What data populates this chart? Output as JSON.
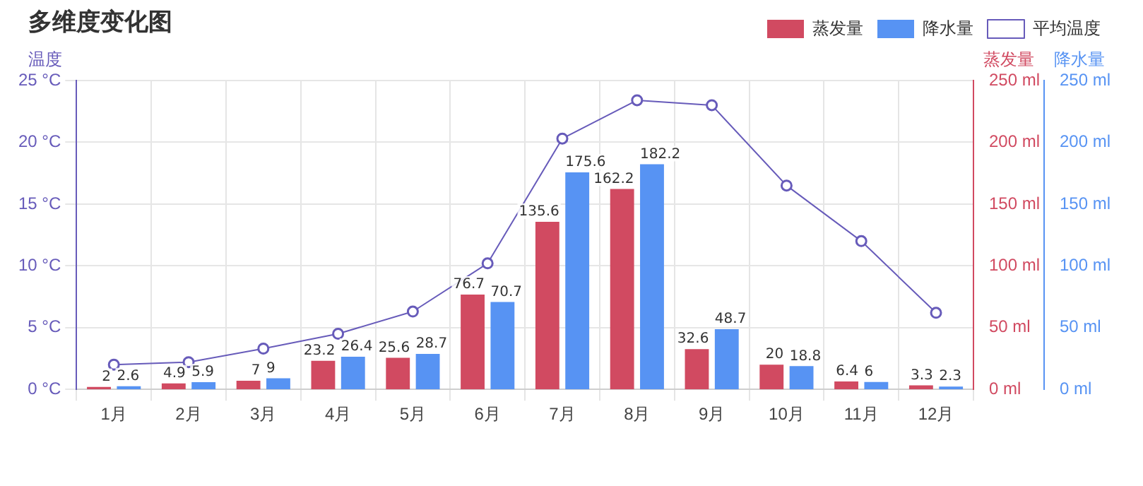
{
  "chart_data": {
    "type": "bar",
    "title": "多维度变化图",
    "categories": [
      "1月",
      "2月",
      "3月",
      "4月",
      "5月",
      "6月",
      "7月",
      "8月",
      "9月",
      "10月",
      "11月",
      "12月"
    ],
    "ylabel": "温度",
    "y2label": "蒸发量",
    "y3label": "降水量",
    "series": [
      {
        "name": "蒸发量",
        "axis": "y2",
        "color": "#d14a61",
        "values": [
          2,
          4.9,
          7,
          23.2,
          25.6,
          76.7,
          135.6,
          162.2,
          32.6,
          20,
          6.4,
          3.3
        ],
        "value_labels": [
          "2",
          "4.9",
          "7",
          "23.2",
          "25.6",
          "76.7",
          "135.6",
          "162.2",
          "32.6",
          "20",
          "6.4",
          "3.3"
        ]
      },
      {
        "name": "降水量",
        "axis": "y3",
        "color": "#5793f3",
        "values": [
          2.6,
          5.9,
          9,
          26.4,
          28.7,
          70.7,
          175.6,
          182.2,
          48.7,
          18.8,
          6,
          2.3
        ],
        "value_labels": [
          "2.6",
          "5.9",
          "9",
          "26.4",
          "28.7",
          "70.7",
          "175.6",
          "182.2",
          "48.7",
          "18.8",
          "6",
          "2.3"
        ]
      },
      {
        "name": "平均温度",
        "type": "line",
        "axis": "y",
        "color": "#675bba",
        "values": [
          2,
          2.2,
          3.3,
          4.5,
          6.3,
          10.2,
          20.3,
          23.4,
          23,
          16.5,
          12,
          6.2
        ]
      }
    ],
    "ylim": [
      0,
      25
    ],
    "yticks": [
      {
        "value": 0,
        "label": "0 °C"
      },
      {
        "value": 5,
        "label": "5 °C"
      },
      {
        "value": 10,
        "label": "10 °C"
      },
      {
        "value": 15,
        "label": "15 °C"
      },
      {
        "value": 20,
        "label": "20 °C"
      },
      {
        "value": 25,
        "label": "25 °C"
      }
    ],
    "y2lim": [
      0,
      250
    ],
    "y2ticks": [
      {
        "value": 0,
        "label": "0 ml"
      },
      {
        "value": 50,
        "label": "50 ml"
      },
      {
        "value": 100,
        "label": "100 ml"
      },
      {
        "value": 150,
        "label": "150 ml"
      },
      {
        "value": 200,
        "label": "200 ml"
      },
      {
        "value": 250,
        "label": "250 ml"
      }
    ],
    "y3lim": [
      0,
      250
    ],
    "y3ticks": [
      {
        "value": 0,
        "label": "0 ml"
      },
      {
        "value": 50,
        "label": "50 ml"
      },
      {
        "value": 100,
        "label": "100 ml"
      },
      {
        "value": 150,
        "label": "150 ml"
      },
      {
        "value": 200,
        "label": "200 ml"
      },
      {
        "value": 250,
        "label": "250 ml"
      }
    ],
    "grid": true,
    "legend": "top right",
    "marker": "circle",
    "line_style": "solid"
  }
}
